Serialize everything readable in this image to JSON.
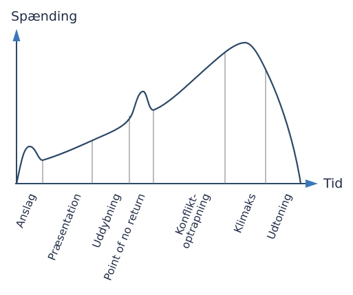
{
  "diagram": {
    "y_axis_label": "Spænding",
    "x_axis_label": "Tid",
    "colors": {
      "curve": "#2c4866",
      "axis": "#2c4866",
      "arrow": "#3a78b8",
      "divider": "#7a7a7a",
      "text": "#1f2a44"
    },
    "phases": [
      {
        "label": "Anslag"
      },
      {
        "label": "Præsentation"
      },
      {
        "label": "Uddybning"
      },
      {
        "label": "Point of no return"
      },
      {
        "label": "Konflikt-",
        "label_line2": "optrapning"
      },
      {
        "label": "Klimaks"
      },
      {
        "label": "Udtoning"
      }
    ]
  }
}
